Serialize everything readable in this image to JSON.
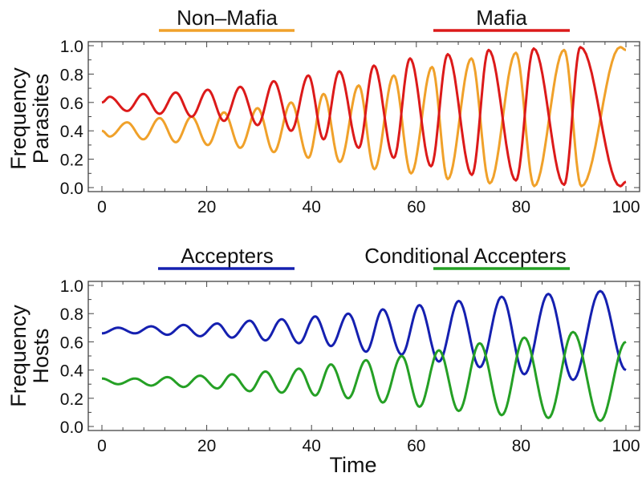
{
  "chart_data": [
    {
      "type": "line",
      "title": "",
      "xlabel": "",
      "ylabel": [
        "Frequency",
        "Parasites"
      ],
      "xlim": [
        0,
        100
      ],
      "ylim": [
        0,
        1
      ],
      "xticks": [
        "0",
        "20",
        "40",
        "60",
        "80",
        "100"
      ],
      "yticks": [
        "0.0",
        "0.2",
        "0.4",
        "0.6",
        "0.8",
        "1.0"
      ],
      "legend_placement": "top",
      "series": [
        {
          "name": "Non–Mafia",
          "color": "#f0a12a",
          "points": [
            [
              0,
              0.4
            ],
            [
              1.5,
              0.36
            ],
            [
              4.8,
              0.46
            ],
            [
              7.9,
              0.34
            ],
            [
              11,
              0.49
            ],
            [
              14.1,
              0.32
            ],
            [
              17.1,
              0.5
            ],
            [
              20.2,
              0.3
            ],
            [
              23.3,
              0.53
            ],
            [
              26.4,
              0.28
            ],
            [
              29.7,
              0.56
            ],
            [
              32.8,
              0.25
            ],
            [
              36.1,
              0.6
            ],
            [
              39.4,
              0.21
            ],
            [
              42.3,
              0.66
            ],
            [
              45.4,
              0.18
            ],
            [
              49,
              0.72
            ],
            [
              52,
              0.13
            ],
            [
              55.7,
              0.79
            ],
            [
              59,
              0.1
            ],
            [
              63,
              0.85
            ],
            [
              66,
              0.06
            ],
            [
              70.5,
              0.91
            ],
            [
              74,
              0.03
            ],
            [
              79,
              0.95
            ],
            [
              82.5,
              0.01
            ],
            [
              88.2,
              0.97
            ],
            [
              91.5,
              0.01
            ],
            [
              98.9,
              0.99
            ],
            [
              100,
              0.97
            ]
          ]
        },
        {
          "name": "Mafia",
          "color": "#dc1a1a",
          "points": [
            [
              0,
              0.6
            ],
            [
              1.5,
              0.64
            ],
            [
              4.8,
              0.54
            ],
            [
              7.9,
              0.66
            ],
            [
              11,
              0.52
            ],
            [
              14.1,
              0.67
            ],
            [
              17.1,
              0.5
            ],
            [
              20.2,
              0.69
            ],
            [
              23.3,
              0.47
            ],
            [
              26.4,
              0.71
            ],
            [
              29.7,
              0.44
            ],
            [
              32.8,
              0.75
            ],
            [
              36.1,
              0.4
            ],
            [
              39.4,
              0.79
            ],
            [
              42.3,
              0.34
            ],
            [
              45.3,
              0.82
            ],
            [
              49,
              0.28
            ],
            [
              51.9,
              0.86
            ],
            [
              55.7,
              0.21
            ],
            [
              58.8,
              0.91
            ],
            [
              62.8,
              0.15
            ],
            [
              66,
              0.94
            ],
            [
              70.6,
              0.09
            ],
            [
              73.8,
              0.97
            ],
            [
              79,
              0.05
            ],
            [
              82.4,
              0.98
            ],
            [
              88.2,
              0.02
            ],
            [
              91.3,
              0.99
            ],
            [
              98.9,
              0.01
            ],
            [
              100,
              0.04
            ]
          ]
        }
      ]
    },
    {
      "type": "line",
      "title": "",
      "xlabel": "Time",
      "ylabel": [
        "Frequency",
        "Hosts"
      ],
      "xlim": [
        0,
        100
      ],
      "ylim": [
        0,
        1
      ],
      "xticks": [
        "0",
        "20",
        "40",
        "60",
        "80",
        "100"
      ],
      "yticks": [
        "0.0",
        "0.2",
        "0.4",
        "0.6",
        "0.8",
        "1.0"
      ],
      "legend_placement": "top",
      "series": [
        {
          "name": "Accepters",
          "color": "#1520b0",
          "points": [
            [
              0,
              0.66
            ],
            [
              3.1,
              0.7
            ],
            [
              6.3,
              0.66
            ],
            [
              9.4,
              0.71
            ],
            [
              12.5,
              0.65
            ],
            [
              15.6,
              0.72
            ],
            [
              18.7,
              0.64
            ],
            [
              22,
              0.73
            ],
            [
              24.8,
              0.63
            ],
            [
              28.2,
              0.75
            ],
            [
              31.2,
              0.61
            ],
            [
              34.3,
              0.76
            ],
            [
              37.6,
              0.59
            ],
            [
              40.7,
              0.78
            ],
            [
              43.7,
              0.57
            ],
            [
              47,
              0.8
            ],
            [
              50.4,
              0.53
            ],
            [
              53.6,
              0.83
            ],
            [
              57.2,
              0.51
            ],
            [
              60.6,
              0.86
            ],
            [
              64.3,
              0.46
            ],
            [
              68.1,
              0.89
            ],
            [
              72.1,
              0.42
            ],
            [
              76.3,
              0.92
            ],
            [
              80.6,
              0.37
            ],
            [
              85.2,
              0.94
            ],
            [
              89.9,
              0.33
            ],
            [
              95.1,
              0.96
            ],
            [
              100,
              0.4
            ]
          ]
        },
        {
          "name": "Conditional Accepters",
          "color": "#25a025",
          "points": [
            [
              0,
              0.34
            ],
            [
              3.1,
              0.3
            ],
            [
              6.3,
              0.34
            ],
            [
              9.4,
              0.29
            ],
            [
              12.5,
              0.35
            ],
            [
              15.6,
              0.28
            ],
            [
              18.7,
              0.36
            ],
            [
              22,
              0.27
            ],
            [
              24.8,
              0.37
            ],
            [
              28.2,
              0.25
            ],
            [
              31.2,
              0.39
            ],
            [
              34.3,
              0.24
            ],
            [
              37.6,
              0.41
            ],
            [
              40.7,
              0.22
            ],
            [
              43.7,
              0.44
            ],
            [
              47,
              0.2
            ],
            [
              50.4,
              0.47
            ],
            [
              53.6,
              0.17
            ],
            [
              57.2,
              0.5
            ],
            [
              60.6,
              0.14
            ],
            [
              64.3,
              0.54
            ],
            [
              68.1,
              0.11
            ],
            [
              72.1,
              0.59
            ],
            [
              76.3,
              0.08
            ],
            [
              80.6,
              0.63
            ],
            [
              85.2,
              0.06
            ],
            [
              89.9,
              0.67
            ],
            [
              95.1,
              0.04
            ],
            [
              100,
              0.6
            ]
          ]
        }
      ]
    }
  ]
}
